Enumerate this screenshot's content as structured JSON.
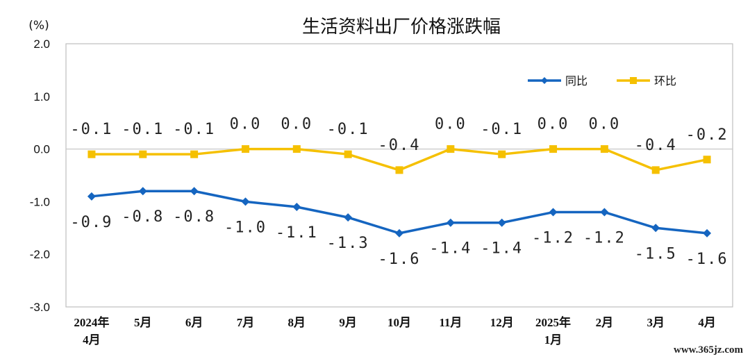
{
  "colors": {
    "yoy": "#1565C0",
    "mom": "#F5C000",
    "zero_line": "#c8c8c8",
    "frame": "#bfbfbf"
  },
  "watermark": "www.365jz.com",
  "chart_data": {
    "type": "line",
    "title": "生活资料出厂价格涨跌幅",
    "ylabel": "(%)",
    "xlabel": "",
    "ylim": [
      -3.0,
      2.0
    ],
    "yticks": [
      "2.0",
      "1.0",
      "0.0",
      "-1.0",
      "-2.0",
      "-3.0"
    ],
    "categories": [
      [
        "2024年",
        "4月"
      ],
      [
        "5月"
      ],
      [
        "6月"
      ],
      [
        "7月"
      ],
      [
        "8月"
      ],
      [
        "9月"
      ],
      [
        "10月"
      ],
      [
        "11月"
      ],
      [
        "12月"
      ],
      [
        "2025年",
        "1月"
      ],
      [
        "2月"
      ],
      [
        "3月"
      ],
      [
        "4月"
      ]
    ],
    "legend_position": "top-right",
    "grid": false,
    "series": [
      {
        "name": "同比",
        "color": "#1565C0",
        "marker": "diamond",
        "values": [
          -0.9,
          -0.8,
          -0.8,
          -1.0,
          -1.1,
          -1.3,
          -1.6,
          -1.4,
          -1.4,
          -1.2,
          -1.2,
          -1.5,
          -1.6
        ],
        "labels": [
          "-0.9",
          "-0.8",
          "-0.8",
          "-1.0",
          "-1.1",
          "-1.3",
          "-1.6",
          "-1.4",
          "-1.4",
          "-1.2",
          "-1.2",
          "-1.5",
          "-1.6"
        ]
      },
      {
        "name": "环比",
        "color": "#F5C000",
        "marker": "square",
        "values": [
          -0.1,
          -0.1,
          -0.1,
          0.0,
          0.0,
          -0.1,
          -0.4,
          0.0,
          -0.1,
          0.0,
          0.0,
          -0.4,
          -0.2
        ],
        "labels": [
          "-0.1",
          "-0.1",
          "-0.1",
          "0.0",
          "0.0",
          "-0.1",
          "-0.4",
          "0.0",
          "-0.1",
          "0.0",
          "0.0",
          "-0.4",
          "-0.2"
        ]
      }
    ]
  }
}
